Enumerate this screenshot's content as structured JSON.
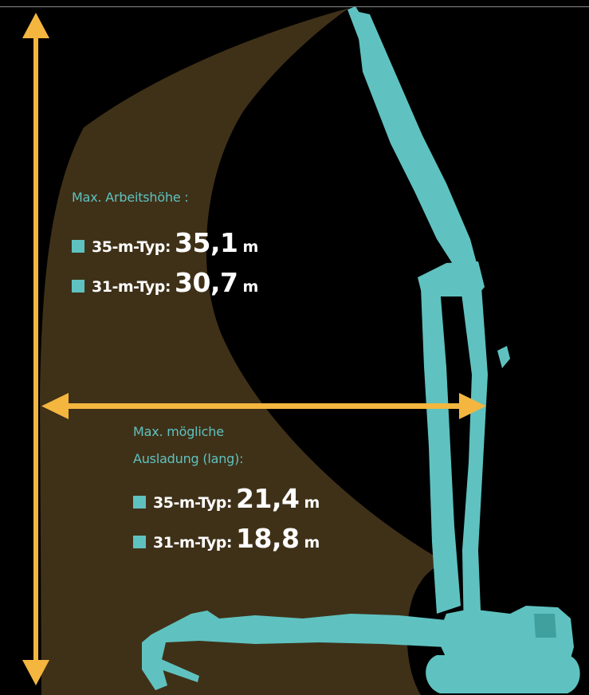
{
  "colors": {
    "background": "#000000",
    "reach_area": "#3F3118",
    "machine": "#5FC2C0",
    "arrows": "#F4B63F",
    "caption": "#5FC2C0",
    "value_text": "#FFFFFF"
  },
  "height_block": {
    "caption": "Max. Arbeitshöhe :",
    "rows": [
      {
        "type_label": "35-m-Typ:",
        "value": "35,1",
        "unit": "m"
      },
      {
        "type_label": "31-m-Typ:",
        "value": "30,7",
        "unit": "m"
      }
    ]
  },
  "reach_block": {
    "caption_line1": "Max. mögliche",
    "caption_line2": "Ausladung (lang):",
    "rows": [
      {
        "type_label": "35-m-Typ:",
        "value": "21,4",
        "unit": "m"
      },
      {
        "type_label": "31-m-Typ:",
        "value": "18,8",
        "unit": "m"
      }
    ]
  }
}
